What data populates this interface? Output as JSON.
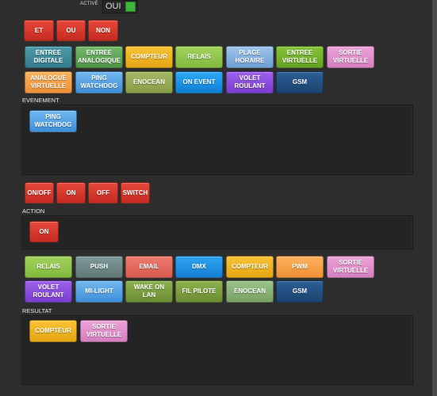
{
  "header": {
    "active_label": "ACTIVÉ",
    "active_value": "OUI",
    "active_color": "#3fb43a"
  },
  "logic_buttons": [
    "ET",
    "OU",
    "NON"
  ],
  "event_palette": [
    {
      "label": "ENTREE\nDIGITALE",
      "color": "teal"
    },
    {
      "label": "ENTREE\nANALOGIQUE",
      "color": "green"
    },
    {
      "label": "COMPTEUR",
      "color": "yellow"
    },
    {
      "label": "RELAIS",
      "color": "lime"
    },
    {
      "label": "PLAGE\nHORAIRE",
      "color": "lightblue"
    },
    {
      "label": "ENTREE\nVIRTUELLE",
      "color": "brightgreen"
    },
    {
      "label": "SORTIE\nVIRTUELLE",
      "color": "pink"
    },
    {
      "label": "ANALOGUE\nVIRTUELLE",
      "color": "orange"
    },
    {
      "label": "PING\nWATCHDOG",
      "color": "skyblue"
    },
    {
      "label": "ENOCEAN",
      "color": "olive"
    },
    {
      "label": "ON EVENT",
      "color": "azure"
    },
    {
      "label": "VOLET\nROULANT",
      "color": "purple"
    },
    {
      "label": "GSM",
      "color": "navy"
    }
  ],
  "evenement": {
    "label": "EVENEMENT",
    "items": [
      {
        "label": "PING\nWATCHDOG",
        "color": "skyblue"
      }
    ]
  },
  "action_palette": [
    "ON/OFF",
    "ON",
    "OFF",
    "SWITCH"
  ],
  "action": {
    "label": "ACTION",
    "items": [
      {
        "label": "ON",
        "color": "red"
      }
    ]
  },
  "result_palette": [
    {
      "label": "RELAIS",
      "color": "lime"
    },
    {
      "label": "PUSH",
      "color": "grayteal"
    },
    {
      "label": "EMAIL",
      "color": "salmon"
    },
    {
      "label": "DMX",
      "color": "blue"
    },
    {
      "label": "COMPTEUR",
      "color": "yellow"
    },
    {
      "label": "PWM",
      "color": "orange"
    },
    {
      "label": "SORTIE\nVIRTUELLE",
      "color": "pink"
    },
    {
      "label": "VOLET\nROULANT",
      "color": "purple"
    },
    {
      "label": "MI-LIGHT",
      "color": "skyblue"
    },
    {
      "label": "WAKE ON\nLAN",
      "color": "olivegreen"
    },
    {
      "label": "FIL PILOTE",
      "color": "olivegreen"
    },
    {
      "label": "ENOCEAN",
      "color": "seagreen"
    },
    {
      "label": "GSM",
      "color": "navy"
    }
  ],
  "resultat": {
    "label": "RESULTAT",
    "items": [
      {
        "label": "COMPTEUR",
        "color": "yellow"
      },
      {
        "label": "SORTIE\nVIRTUELLE",
        "color": "pink"
      }
    ]
  }
}
